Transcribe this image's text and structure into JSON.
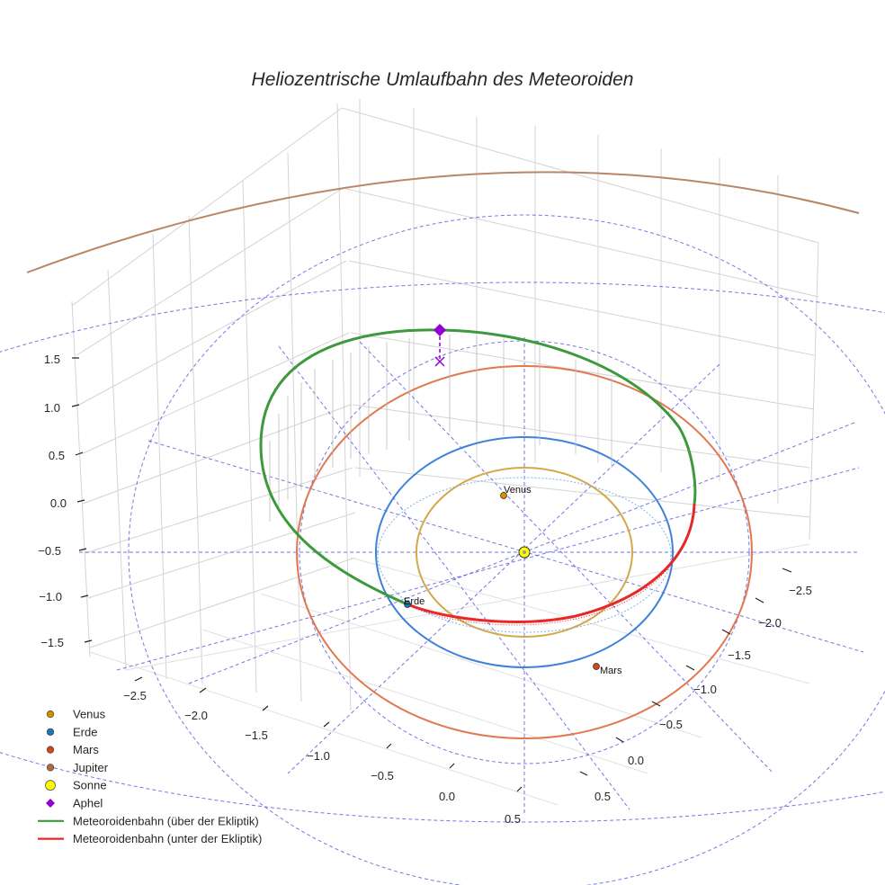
{
  "chart_data": {
    "type": "line",
    "title": "Heliozentrische Umlaufbahn des Meteoroiden",
    "projection": "3d",
    "xlabel": "",
    "ylabel": "",
    "zlabel": "",
    "x_ticks": [
      "−2.5",
      "−2.0",
      "−1.5",
      "−1.0",
      "−0.5",
      "0.0",
      "0.5"
    ],
    "y_ticks": [
      "−2.5",
      "−2.0",
      "−1.5",
      "−1.0",
      "−0.5",
      "0.0",
      "0.5"
    ],
    "z_ticks": [
      "1.5",
      "1.0",
      "0.5",
      "0.0",
      "−0.5",
      "−1.0",
      "−1.5"
    ],
    "grid": true,
    "legend_position": "bottom-left",
    "sun": {
      "name": "Sonne",
      "color": "#ffff00"
    },
    "planets": [
      {
        "name": "Venus",
        "label": "Venus",
        "color": "#d98c00",
        "orbit_color": "#d4a84a",
        "orbit_radius_au": 0.72
      },
      {
        "name": "Erde",
        "label": "Erde",
        "color": "#1f77b4",
        "orbit_color": "#3f82d8",
        "orbit_radius_au": 1.0
      },
      {
        "name": "Mars",
        "label": "Mars",
        "color": "#cc4a1a",
        "orbit_color": "#e07850",
        "orbit_radius_au": 1.52
      },
      {
        "name": "Jupiter",
        "label": "",
        "color": "#b06a40",
        "orbit_color": "#b8876a",
        "orbit_radius_au": 5.2
      }
    ],
    "aphel": {
      "name": "Aphel",
      "color": "#9400d3"
    },
    "series": [
      {
        "name": "Meteoroidenbahn (über der Ekliptik)",
        "color": "#3c9a3c"
      },
      {
        "name": "Meteoroidenbahn (unter der Ekliptik)",
        "color": "#e82828"
      }
    ],
    "ecliptic_grid_color": "#5555dd"
  },
  "legend": [
    {
      "label": "Venus",
      "kind": "dot",
      "color": "#d98c00"
    },
    {
      "label": "Erde",
      "kind": "dot",
      "color": "#1f77b4"
    },
    {
      "label": "Mars",
      "kind": "dot",
      "color": "#cc4a1a"
    },
    {
      "label": "Jupiter",
      "kind": "dot",
      "color": "#b06a40"
    },
    {
      "label": "Sonne",
      "kind": "sun",
      "color": "#ffff00"
    },
    {
      "label": "Aphel",
      "kind": "diamond",
      "color": "#9400d3"
    },
    {
      "label": "Meteoroidenbahn (über der Ekliptik)",
      "kind": "line",
      "color": "#3c9a3c"
    },
    {
      "label": "Meteoroidenbahn (unter der Ekliptik)",
      "kind": "line",
      "color": "#e82828"
    }
  ]
}
